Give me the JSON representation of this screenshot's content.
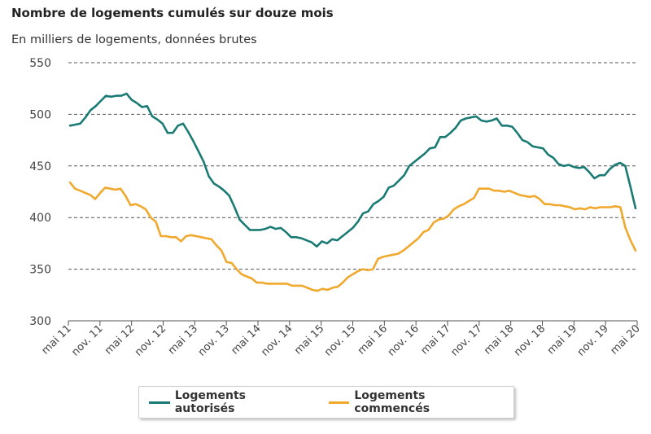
{
  "chart_data": {
    "type": "line",
    "title": "Nombre de logements cumulés sur douze mois",
    "subtitle": "En milliers de logements, données brutes",
    "ylim": [
      300,
      550
    ],
    "yticks": [
      300,
      350,
      400,
      450,
      500,
      550
    ],
    "x_start_month": "2011-05",
    "x_tick_labels": [
      "mai 11",
      "nov. 11",
      "mai 12",
      "nov. 12",
      "mai 13",
      "nov. 13",
      "mai 14",
      "nov. 14",
      "mai 15",
      "nov. 15",
      "mai 16",
      "nov. 16",
      "mai 17",
      "nov. 17",
      "mai 18",
      "nov. 18",
      "mai 19",
      "nov. 19",
      "mai 20"
    ],
    "grid": true,
    "legend_position": "bottom",
    "series": [
      {
        "name": "Logements autorisés",
        "color": "#1a7b74",
        "values": [
          489,
          490,
          491,
          497,
          504,
          508,
          513,
          518,
          517,
          518,
          518,
          520,
          514,
          511,
          507,
          508,
          498,
          495,
          491,
          482,
          482,
          489,
          491,
          483,
          474,
          464,
          454,
          440,
          433,
          430,
          426,
          421,
          410,
          398,
          393,
          388,
          388,
          388,
          389,
          391,
          389,
          390,
          386,
          381,
          381,
          380,
          378,
          376,
          372,
          377,
          375,
          379,
          378,
          382,
          386,
          390,
          396,
          404,
          406,
          413,
          416,
          420,
          429,
          431,
          436,
          441,
          450,
          454,
          458,
          462,
          467,
          468,
          478,
          478,
          482,
          487,
          494,
          496,
          497,
          498,
          494,
          493,
          494,
          496,
          489,
          489,
          488,
          482,
          475,
          473,
          469,
          468,
          467,
          461,
          458,
          452,
          450,
          451,
          449,
          448,
          449,
          444,
          438,
          441,
          441,
          447,
          451,
          453,
          450,
          430,
          409
        ]
      },
      {
        "name": "Logements commencés",
        "color": "#f0a82d",
        "values": [
          434,
          428,
          426,
          424,
          422,
          418,
          424,
          429,
          428,
          427,
          428,
          421,
          412,
          413,
          411,
          408,
          400,
          396,
          382,
          382,
          381,
          381,
          377,
          382,
          383,
          382,
          381,
          380,
          379,
          373,
          368,
          357,
          356,
          350,
          345,
          343,
          341,
          337,
          337,
          336,
          336,
          336,
          336,
          336,
          334,
          334,
          334,
          332,
          330,
          329,
          331,
          330,
          332,
          333,
          337,
          342,
          345,
          348,
          350,
          349,
          350,
          360,
          362,
          363,
          364,
          365,
          368,
          372,
          376,
          380,
          386,
          388,
          395,
          398,
          399,
          402,
          408,
          411,
          413,
          416,
          419,
          428,
          428,
          428,
          426,
          426,
          425,
          426,
          424,
          422,
          421,
          420,
          421,
          418,
          413,
          413,
          412,
          412,
          411,
          410,
          408,
          409,
          408,
          410,
          409,
          410,
          410,
          410,
          411,
          410,
          390,
          378,
          368
        ]
      }
    ]
  }
}
